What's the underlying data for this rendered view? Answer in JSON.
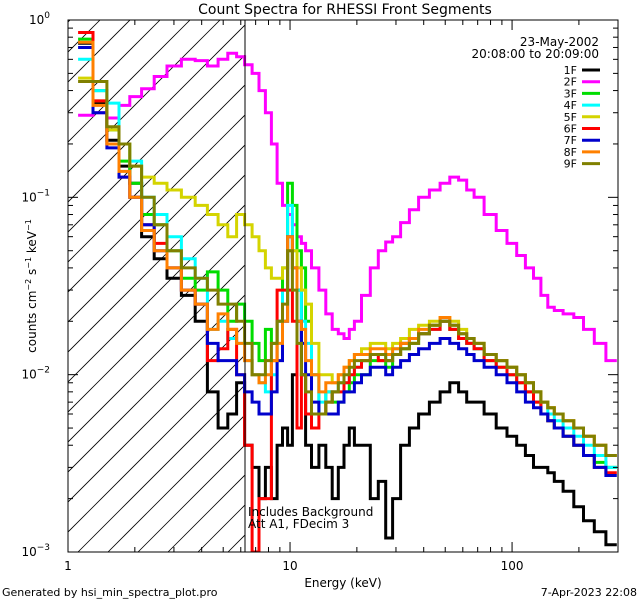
{
  "title": "Count Spectra for RHESSI Front Segments",
  "footer_left": "Generated by hsi_min_spectra_plot.pro",
  "footer_right": "7-Apr-2023 22:08",
  "date": "23-May-2002",
  "time_range": "20:08:00 to 20:09:00",
  "annotation_line1": "Includes Background",
  "annotation_line2": "Att A1, FDecim 3",
  "chart_data": {
    "type": "line",
    "title": "Count Spectra for RHESSI Front Segments",
    "xlabel": "Energy (keV)",
    "ylabel": "counts cm^-2 s^-1 keV^-1",
    "x_scale": "log",
    "y_scale": "log",
    "xlim": [
      1,
      300
    ],
    "ylim": [
      0.001,
      1
    ],
    "x_ticks": [
      {
        "v": 1,
        "l": "1"
      },
      {
        "v": 10,
        "l": "10"
      },
      {
        "v": 100,
        "l": "100"
      }
    ],
    "y_ticks": [
      {
        "v": 1,
        "l": "10^0"
      },
      {
        "v": 0.1,
        "l": "10^-1"
      },
      {
        "v": 0.01,
        "l": "10^-2"
      },
      {
        "v": 0.001,
        "l": "10^-3"
      }
    ],
    "shaded_region": [
      1,
      5.9
    ],
    "legend_position": "top-right",
    "x": [
      1.2,
      1.4,
      1.6,
      1.8,
      2.0,
      2.3,
      2.6,
      3.0,
      3.5,
      4.0,
      4.5,
      5.0,
      5.5,
      6.0,
      6.5,
      7.0,
      7.5,
      8.0,
      8.5,
      9.0,
      9.5,
      10.0,
      10.5,
      11.0,
      11.5,
      12.0,
      13.0,
      14.0,
      15.0,
      16.0,
      17.0,
      18.0,
      19.0,
      20.0,
      22.0,
      24.0,
      26.0,
      28.0,
      30.0,
      33.0,
      36.0,
      40.0,
      45.0,
      50.0,
      55.0,
      60.0,
      65.0,
      70.0,
      80.0,
      90.0,
      100.0,
      110.0,
      120.0,
      130.0,
      140.0,
      150.0,
      160.0,
      180.0,
      200.0,
      220.0,
      250.0,
      280.0
    ],
    "series": [
      {
        "name": "1F",
        "color": "#000000",
        "values": [
          0.74,
          0.34,
          0.21,
          0.15,
          0.12,
          0.06,
          0.045,
          0.035,
          0.028,
          0.02,
          0.008,
          0.005,
          0.006,
          0.009,
          0.004,
          0.003,
          0.002,
          0.003,
          0.002,
          0.004,
          0.005,
          0.004,
          0.01,
          0.03,
          0.01,
          0.004,
          0.003,
          0.004,
          0.003,
          0.002,
          0.003,
          0.004,
          0.005,
          0.004,
          0.004,
          0.002,
          0.0025,
          0.0012,
          0.002,
          0.004,
          0.005,
          0.006,
          0.007,
          0.008,
          0.009,
          0.008,
          0.007,
          0.007,
          0.006,
          0.005,
          0.0045,
          0.004,
          0.0035,
          0.003,
          0.003,
          0.0028,
          0.0025,
          0.0022,
          0.0018,
          0.0015,
          0.0013,
          0.0011
        ]
      },
      {
        "name": "2F",
        "color": "#ff00ff",
        "values": [
          0.29,
          0.3,
          0.28,
          0.33,
          0.37,
          0.41,
          0.48,
          0.55,
          0.6,
          0.59,
          0.55,
          0.6,
          0.65,
          0.62,
          0.56,
          0.5,
          0.4,
          0.3,
          0.2,
          0.12,
          0.09,
          0.08,
          0.07,
          0.06,
          0.055,
          0.05,
          0.04,
          0.03,
          0.022,
          0.018,
          0.017,
          0.016,
          0.018,
          0.02,
          0.028,
          0.04,
          0.05,
          0.056,
          0.06,
          0.072,
          0.085,
          0.1,
          0.11,
          0.12,
          0.13,
          0.125,
          0.11,
          0.1,
          0.08,
          0.065,
          0.055,
          0.047,
          0.04,
          0.035,
          0.028,
          0.024,
          0.023,
          0.022,
          0.021,
          0.018,
          0.015,
          0.012
        ]
      },
      {
        "name": "3F",
        "color": "#00dd00",
        "values": [
          0.78,
          0.4,
          0.24,
          0.16,
          0.12,
          0.08,
          0.07,
          0.05,
          0.035,
          0.03,
          0.038,
          0.03,
          0.02,
          0.025,
          0.02,
          0.015,
          0.012,
          0.018,
          0.015,
          0.02,
          0.04,
          0.12,
          0.09,
          0.05,
          0.04,
          0.02,
          0.01,
          0.006,
          0.008,
          0.007,
          0.007,
          0.008,
          0.009,
          0.01,
          0.01,
          0.012,
          0.012,
          0.011,
          0.013,
          0.014,
          0.015,
          0.017,
          0.019,
          0.02,
          0.018,
          0.016,
          0.015,
          0.014,
          0.012,
          0.011,
          0.01,
          0.009,
          0.008,
          0.007,
          0.006,
          0.0055,
          0.005,
          0.0045,
          0.004,
          0.0035,
          0.0032,
          0.003
        ]
      },
      {
        "name": "4F",
        "color": "#00ffff",
        "values": [
          0.6,
          0.4,
          0.34,
          0.2,
          0.16,
          0.1,
          0.08,
          0.06,
          0.045,
          0.035,
          0.018,
          0.02,
          0.016,
          0.015,
          0.012,
          0.01,
          0.009,
          0.008,
          0.01,
          0.02,
          0.03,
          0.09,
          0.05,
          0.03,
          0.02,
          0.015,
          0.01,
          0.007,
          0.008,
          0.008,
          0.009,
          0.009,
          0.01,
          0.011,
          0.012,
          0.013,
          0.013,
          0.012,
          0.014,
          0.015,
          0.016,
          0.017,
          0.018,
          0.02,
          0.019,
          0.017,
          0.015,
          0.014,
          0.013,
          0.012,
          0.011,
          0.01,
          0.009,
          0.008,
          0.007,
          0.006,
          0.0055,
          0.005,
          0.0045,
          0.004,
          0.0035,
          0.003
        ]
      },
      {
        "name": "5F",
        "color": "#d4d400",
        "values": [
          0.47,
          0.35,
          0.24,
          0.2,
          0.15,
          0.13,
          0.12,
          0.11,
          0.1,
          0.09,
          0.08,
          0.07,
          0.06,
          0.08,
          0.07,
          0.06,
          0.05,
          0.04,
          0.035,
          0.035,
          0.04,
          0.05,
          0.05,
          0.04,
          0.03,
          0.025,
          0.015,
          0.01,
          0.01,
          0.009,
          0.01,
          0.011,
          0.012,
          0.013,
          0.014,
          0.015,
          0.015,
          0.014,
          0.015,
          0.016,
          0.018,
          0.019,
          0.02,
          0.021,
          0.02,
          0.018,
          0.016,
          0.015,
          0.013,
          0.012,
          0.011,
          0.01,
          0.009,
          0.008,
          0.007,
          0.0065,
          0.006,
          0.0055,
          0.005,
          0.0045,
          0.004,
          0.0035
        ]
      },
      {
        "name": "6F",
        "color": "#ff0000",
        "values": [
          0.85,
          0.35,
          0.2,
          0.13,
          0.1,
          0.07,
          0.055,
          0.04,
          0.03,
          0.025,
          0.012,
          0.014,
          0.018,
          0.01,
          0.004,
          0.001,
          0.002,
          0.002,
          0.012,
          0.03,
          0.03,
          0.03,
          0.02,
          0.005,
          0.01,
          0.006,
          0.005,
          0.006,
          0.007,
          0.008,
          0.008,
          0.009,
          0.01,
          0.011,
          0.012,
          0.013,
          0.012,
          0.012,
          0.013,
          0.015,
          0.016,
          0.017,
          0.018,
          0.02,
          0.018,
          0.016,
          0.015,
          0.014,
          0.012,
          0.011,
          0.01,
          0.009,
          0.008,
          0.007,
          0.006,
          0.0055,
          0.005,
          0.0045,
          0.004,
          0.0035,
          0.003,
          0.0028
        ]
      },
      {
        "name": "7F",
        "color": "#0000cc",
        "values": [
          0.7,
          0.3,
          0.19,
          0.13,
          0.1,
          0.07,
          0.05,
          0.04,
          0.03,
          0.025,
          0.015,
          0.012,
          0.012,
          0.01,
          0.008,
          0.007,
          0.006,
          0.006,
          0.008,
          0.012,
          0.02,
          0.06,
          0.04,
          0.02,
          0.015,
          0.01,
          0.007,
          0.006,
          0.006,
          0.006,
          0.007,
          0.008,
          0.008,
          0.009,
          0.01,
          0.011,
          0.011,
          0.01,
          0.011,
          0.012,
          0.013,
          0.014,
          0.015,
          0.016,
          0.015,
          0.014,
          0.013,
          0.012,
          0.011,
          0.01,
          0.009,
          0.008,
          0.007,
          0.0065,
          0.006,
          0.0055,
          0.005,
          0.0045,
          0.004,
          0.0035,
          0.003,
          0.0027
        ]
      },
      {
        "name": "8F",
        "color": "#ff8000",
        "values": [
          0.75,
          0.33,
          0.2,
          0.14,
          0.1,
          0.065,
          0.05,
          0.04,
          0.03,
          0.025,
          0.018,
          0.022,
          0.018,
          0.015,
          0.012,
          0.01,
          0.009,
          0.01,
          0.012,
          0.015,
          0.02,
          0.06,
          0.04,
          0.02,
          0.018,
          0.012,
          0.01,
          0.008,
          0.009,
          0.009,
          0.01,
          0.011,
          0.012,
          0.013,
          0.013,
          0.014,
          0.014,
          0.013,
          0.014,
          0.015,
          0.016,
          0.018,
          0.019,
          0.021,
          0.019,
          0.017,
          0.016,
          0.015,
          0.013,
          0.012,
          0.011,
          0.01,
          0.009,
          0.008,
          0.007,
          0.0065,
          0.006,
          0.0055,
          0.005,
          0.0045,
          0.004,
          0.0035
        ]
      },
      {
        "name": "9F",
        "color": "#808000",
        "values": [
          0.45,
          0.45,
          0.25,
          0.2,
          0.15,
          0.1,
          0.07,
          0.05,
          0.04,
          0.035,
          0.03,
          0.025,
          0.025,
          0.02,
          0.015,
          0.01,
          0.01,
          0.012,
          0.015,
          0.02,
          0.025,
          0.05,
          0.03,
          0.015,
          0.01,
          0.008,
          0.006,
          0.006,
          0.007,
          0.008,
          0.009,
          0.01,
          0.011,
          0.012,
          0.012,
          0.013,
          0.013,
          0.012,
          0.013,
          0.014,
          0.015,
          0.017,
          0.019,
          0.02,
          0.019,
          0.017,
          0.016,
          0.015,
          0.013,
          0.012,
          0.011,
          0.01,
          0.009,
          0.008,
          0.007,
          0.0065,
          0.006,
          0.0055,
          0.005,
          0.0045,
          0.004,
          0.0035
        ]
      }
    ]
  }
}
